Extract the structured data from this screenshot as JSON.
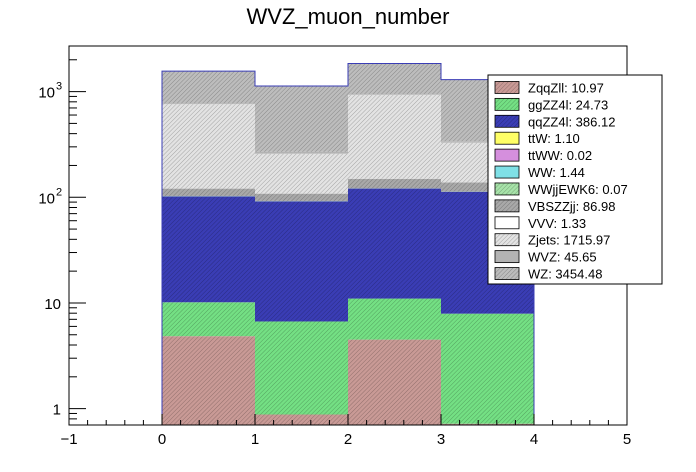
{
  "chart_data": {
    "type": "bar",
    "title": "WVZ_muon_number",
    "xlabel": "",
    "ylabel": "",
    "xlim": [
      -1,
      5
    ],
    "ylim": [
      0.7,
      2700
    ],
    "yscale": "log",
    "x_ticks": [
      "−1",
      "0",
      "1",
      "2",
      "3",
      "4",
      "5"
    ],
    "y_ticks": [
      "1",
      "10",
      "10^2",
      "10^3"
    ],
    "bins": [
      [
        0,
        1
      ],
      [
        1,
        2
      ],
      [
        2,
        3
      ],
      [
        3,
        4
      ]
    ],
    "stack_order": "bottom-to-top",
    "series": [
      {
        "name": "ZqqZll: 10.97",
        "color": "#c99a96",
        "hatch": true,
        "values": [
          4.85,
          0.88,
          4.5,
          0.72
        ]
      },
      {
        "name": "ggZZ4l: 24.73",
        "color": "#74e084",
        "hatch": true,
        "values": [
          5.3,
          5.8,
          6.5,
          7.2
        ]
      },
      {
        "name": "qqZZ4l: 386.12",
        "color": "#3a3db5",
        "hatch": true,
        "values": [
          92,
          85,
          110,
          105
        ]
      },
      {
        "name": "ttW: 1.10",
        "color": "#ffff66",
        "hatch": false,
        "values": [
          0.3,
          0.25,
          0.3,
          0.25
        ]
      },
      {
        "name": "ttWW: 0.02",
        "color": "#d58fdd",
        "hatch": false,
        "values": [
          0.005,
          0.005,
          0.005,
          0.005
        ]
      },
      {
        "name": "WW: 1.44",
        "color": "#7fe0e6",
        "hatch": false,
        "values": [
          0.4,
          0.35,
          0.4,
          0.3
        ]
      },
      {
        "name": "WWjjEWK6: 0.07",
        "color": "#a7e3a9",
        "hatch": true,
        "values": [
          0.02,
          0.02,
          0.02,
          0.01
        ]
      },
      {
        "name": "VBSZZjj: 86.98",
        "color": "#a9a9a9",
        "hatch": true,
        "values": [
          18,
          16,
          28,
          25
        ]
      },
      {
        "name": "VVV: 1.33",
        "color": "#ffffff",
        "hatch": false,
        "values": [
          0.35,
          0.3,
          0.4,
          0.3
        ]
      },
      {
        "name": "Zjets: 1715.97",
        "color": "#e3e3e3",
        "hatch": true,
        "values": [
          640,
          150,
          780,
          190
        ]
      },
      {
        "name": "WVZ: 45.65",
        "color": "#b3b3b3",
        "hatch": false,
        "values": [
          12,
          10,
          14,
          10
        ]
      },
      {
        "name": "WZ: 3454.48",
        "color": "#bdbdbd",
        "hatch": true,
        "values": [
          790,
          860,
          900,
          960
        ]
      }
    ],
    "legend_position": "top-right"
  }
}
